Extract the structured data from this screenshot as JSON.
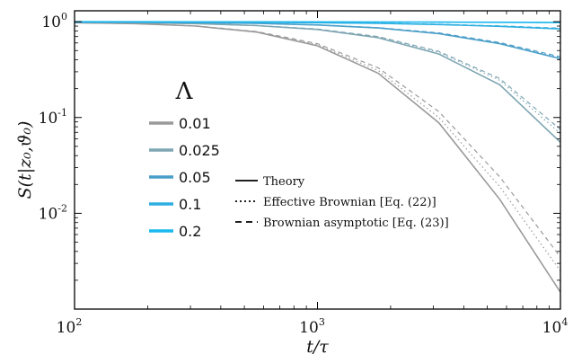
{
  "chart_data": {
    "type": "line",
    "xlabel": "t/τ",
    "ylabel": "S(t|z₀,ϑ₀)",
    "x_scale": "log",
    "y_scale": "log",
    "xlim": [
      100,
      10000
    ],
    "ylim": [
      0.001,
      1.3
    ],
    "x_ticks": [
      {
        "base": "10",
        "exp": "2"
      },
      {
        "base": "10",
        "exp": "3"
      },
      {
        "base": "10",
        "exp": "4"
      }
    ],
    "y_ticks": [
      {
        "base": "10",
        "exp": "-2"
      },
      {
        "base": "10",
        "exp": "-1"
      },
      {
        "base": "10",
        "exp": "0"
      }
    ],
    "legend_title": "Λ",
    "legend_placement": "center-left",
    "style_legend_placement": "center-right",
    "grid": false,
    "x": [
      100,
      178,
      316,
      562,
      1000,
      1778,
      3162,
      5623,
      10000
    ],
    "series": [
      {
        "name": "0.01",
        "color": "#9a9a9a",
        "theory": [
          0.975,
          0.955,
          0.9,
          0.78,
          0.56,
          0.29,
          0.088,
          0.014,
          0.0015
        ],
        "effective": [
          0.975,
          0.955,
          0.9,
          0.785,
          0.575,
          0.31,
          0.1,
          0.019,
          0.0025
        ],
        "asymptotic": [
          0.975,
          0.955,
          0.905,
          0.79,
          0.59,
          0.33,
          0.115,
          0.024,
          0.0035
        ]
      },
      {
        "name": "0.025",
        "color": "#7fa6b3",
        "theory": [
          0.985,
          0.975,
          0.955,
          0.91,
          0.83,
          0.68,
          0.46,
          0.22,
          0.055
        ],
        "effective": [
          0.985,
          0.975,
          0.955,
          0.91,
          0.835,
          0.695,
          0.48,
          0.245,
          0.068
        ],
        "asymptotic": [
          0.985,
          0.975,
          0.955,
          0.912,
          0.838,
          0.7,
          0.49,
          0.255,
          0.075
        ]
      },
      {
        "name": "0.05",
        "color": "#4a9ec8",
        "theory": [
          0.99,
          0.985,
          0.975,
          0.96,
          0.925,
          0.86,
          0.75,
          0.59,
          0.41
        ],
        "effective": [
          0.99,
          0.985,
          0.975,
          0.96,
          0.925,
          0.865,
          0.76,
          0.6,
          0.42
        ],
        "asymptotic": [
          0.99,
          0.985,
          0.975,
          0.96,
          0.927,
          0.867,
          0.765,
          0.605,
          0.43
        ]
      },
      {
        "name": "0.1",
        "color": "#2eaee0",
        "theory": [
          0.995,
          0.993,
          0.99,
          0.985,
          0.975,
          0.96,
          0.935,
          0.895,
          0.84
        ],
        "effective": [
          0.995,
          0.993,
          0.99,
          0.985,
          0.975,
          0.96,
          0.937,
          0.9,
          0.85
        ],
        "asymptotic": [
          0.995,
          0.993,
          0.99,
          0.985,
          0.975,
          0.962,
          0.94,
          0.905,
          0.855
        ]
      },
      {
        "name": "0.2",
        "color": "#1ab8ef",
        "theory": [
          0.998,
          0.998,
          0.997,
          0.996,
          0.995,
          0.993,
          0.99,
          0.986,
          0.98
        ],
        "effective": [
          0.998,
          0.998,
          0.997,
          0.996,
          0.995,
          0.993,
          0.99,
          0.986,
          0.98
        ],
        "asymptotic": [
          0.998,
          0.998,
          0.997,
          0.996,
          0.995,
          0.993,
          0.99,
          0.986,
          0.98
        ]
      }
    ],
    "line_styles": [
      {
        "key": "theory",
        "label": "Theory",
        "dash": "solid"
      },
      {
        "key": "effective",
        "label": "Effective Brownian [Eq. (22)]",
        "dash": "dotted"
      },
      {
        "key": "asymptotic",
        "label": "Brownian asymptotic [Eq. (23)]",
        "dash": "dashed"
      }
    ]
  }
}
